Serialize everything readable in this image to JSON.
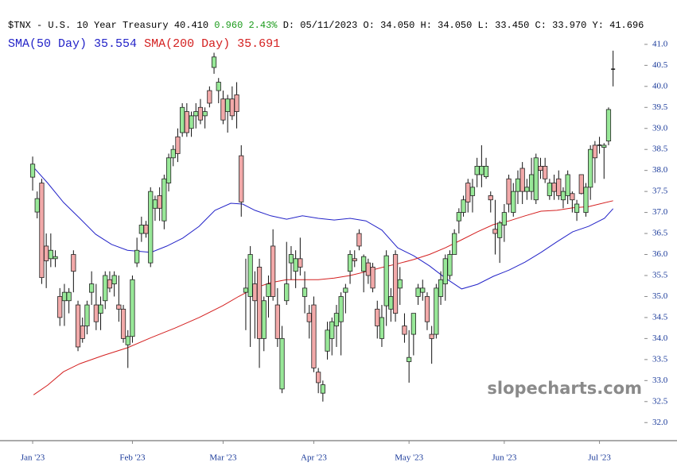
{
  "chart_data": {
    "type": "candlestick",
    "header": {
      "ticker": "$TNX - U.S. 10 Year Treasury",
      "last": "40.410",
      "change": "0.960 2.43%",
      "details": "D: 05/11/2023 O: 34.050 H: 34.050 L: 33.450 C: 33.970 Y: 41.696"
    },
    "watermark": "slopecharts.com",
    "up_color": "#98e898",
    "down_color": "#f2a9a9",
    "open": [
      37.84,
      37.01,
      37.7,
      36.2,
      35.9,
      35.9,
      35.0,
      34.9,
      34.9,
      36.0,
      34.8,
      34.3,
      34.3,
      35.1,
      34.8,
      34.6,
      34.9,
      35.4,
      35.3,
      34.8,
      34.7,
      33.85,
      34.05,
      35.8,
      36.5,
      36.7,
      35.8,
      37.1,
      37.4,
      36.8,
      37.7,
      38.3,
      38.8,
      38.9,
      39.4,
      39.0,
      39.3,
      39.5,
      39.3,
      39.9,
      40.45,
      39.9,
      39.7,
      39.4,
      39.7,
      39.8,
      38.35,
      35.1,
      35.0,
      35.3,
      35.7,
      34.0,
      35.0,
      36.2,
      34.8,
      32.8,
      34.9,
      35.8,
      35.6,
      35.9,
      35.0,
      34.6,
      34.8,
      33.2,
      32.7,
      33.7,
      34.0,
      34.3,
      34.4,
      35.1,
      35.6,
      35.9,
      36.5,
      35.6,
      35.8,
      35.7,
      34.7,
      34.0,
      34.78,
      34.7,
      36.0,
      35.2,
      34.3,
      33.45,
      34.1,
      35.0,
      35.1,
      35.0,
      34.1,
      34.1,
      35.0,
      35.3,
      35.5,
      36.0,
      36.8,
      37.0,
      37.7,
      37.4,
      37.9,
      37.9,
      37.85,
      37.4,
      36.6,
      36.4,
      36.7,
      37.8,
      37.0,
      37.5,
      38.05,
      37.5,
      37.5,
      37.3,
      38.1,
      38.1,
      37.4,
      37.7,
      37.8,
      37.3,
      37.4,
      37.45,
      37.0,
      37.9,
      37.0,
      37.6,
      38.6,
      38.6,
      38.55,
      38.7,
      40.4
    ],
    "high": [
      38.33,
      37.5,
      37.8,
      36.5,
      36.5,
      36.1,
      35.2,
      35.3,
      35.2,
      36.1,
      34.9,
      34.5,
      34.9,
      35.6,
      35.3,
      35.0,
      35.6,
      35.6,
      35.6,
      35.5,
      34.8,
      34.2,
      35.5,
      36.4,
      36.9,
      36.8,
      37.6,
      37.4,
      37.6,
      37.9,
      38.4,
      38.6,
      39.0,
      39.6,
      39.6,
      39.4,
      39.6,
      39.7,
      39.5,
      40.0,
      40.8,
      40.2,
      39.9,
      39.8,
      40.0,
      40.1,
      38.6,
      35.9,
      36.2,
      35.6,
      35.9,
      35.0,
      35.5,
      36.6,
      35.2,
      34.3,
      36.3,
      36.2,
      36.1,
      36.4,
      35.6,
      34.8,
      35.0,
      33.3,
      33.0,
      34.4,
      34.5,
      34.8,
      35.1,
      35.3,
      36.1,
      36.1,
      36.6,
      36.0,
      35.9,
      35.8,
      34.9,
      34.8,
      36.1,
      35.2,
      36.1,
      35.7,
      34.6,
      34.2,
      34.6,
      35.3,
      35.4,
      35.1,
      34.3,
      35.3,
      35.6,
      36.0,
      36.1,
      36.6,
      37.1,
      37.4,
      37.8,
      37.8,
      38.3,
      38.6,
      38.3,
      37.5,
      37.3,
      36.8,
      37.2,
      37.9,
      37.7,
      38.0,
      38.2,
      37.8,
      38.3,
      38.4,
      38.3,
      38.3,
      37.8,
      37.9,
      38.0,
      37.6,
      38.0,
      37.5,
      37.3,
      37.9,
      37.7,
      38.6,
      38.7,
      38.8,
      38.65,
      39.5,
      40.85
    ],
    "low": [
      37.52,
      36.86,
      35.3,
      35.2,
      35.7,
      35.7,
      34.3,
      34.3,
      34.6,
      35.1,
      33.7,
      33.9,
      34.1,
      34.8,
      34.2,
      34.2,
      34.7,
      35.1,
      35.0,
      34.4,
      33.9,
      33.3,
      33.9,
      35.7,
      36.3,
      36.4,
      35.7,
      36.8,
      36.8,
      36.6,
      37.5,
      38.1,
      38.2,
      38.8,
      38.8,
      38.8,
      39.0,
      39.1,
      39.0,
      39.5,
      40.3,
      39.6,
      39.1,
      38.9,
      39.2,
      39.0,
      36.9,
      34.2,
      33.8,
      34.0,
      33.3,
      33.7,
      34.5,
      34.9,
      33.8,
      32.7,
      34.8,
      35.4,
      35.2,
      35.5,
      34.6,
      34.0,
      33.2,
      32.7,
      32.5,
      33.5,
      33.6,
      33.8,
      33.6,
      34.6,
      35.3,
      35.7,
      36.1,
      35.1,
      35.3,
      35.1,
      34.0,
      33.8,
      34.3,
      34.4,
      34.4,
      34.8,
      33.9,
      32.95,
      33.6,
      34.8,
      34.9,
      34.2,
      33.4,
      34.0,
      34.8,
      34.9,
      35.4,
      36.0,
      36.5,
      36.9,
      37.0,
      37.0,
      37.6,
      37.6,
      37.8,
      37.0,
      36.0,
      35.8,
      36.3,
      37.0,
      36.9,
      37.2,
      37.2,
      37.3,
      37.3,
      37.2,
      37.8,
      37.7,
      37.3,
      37.3,
      37.3,
      37.1,
      37.2,
      37.0,
      36.8,
      37.43,
      36.9,
      37.3,
      37.7,
      38.4,
      37.8,
      38.6,
      40.0
    ],
    "close": [
      38.15,
      37.33,
      35.45,
      35.85,
      36.1,
      35.95,
      34.5,
      35.1,
      35.1,
      35.6,
      33.8,
      34.0,
      34.8,
      35.3,
      34.4,
      34.8,
      35.5,
      35.2,
      35.5,
      34.7,
      34.0,
      34.05,
      35.4,
      36.1,
      36.7,
      36.5,
      37.5,
      37.3,
      37.1,
      37.8,
      38.3,
      38.5,
      38.4,
      39.5,
      38.9,
      39.3,
      39.4,
      39.2,
      39.4,
      39.6,
      40.7,
      40.1,
      39.2,
      39.7,
      39.3,
      39.4,
      37.25,
      35.2,
      36.0,
      34.9,
      34.0,
      34.9,
      35.3,
      35.0,
      34.0,
      34.0,
      35.3,
      36.0,
      35.9,
      35.7,
      35.2,
      34.4,
      33.3,
      32.95,
      32.9,
      34.2,
      34.4,
      34.6,
      35.0,
      35.2,
      36.0,
      35.85,
      36.2,
      35.95,
      35.5,
      35.2,
      34.3,
      34.5,
      35.97,
      35.0,
      34.6,
      35.4,
      34.1,
      33.55,
      34.6,
      35.2,
      35.2,
      34.4,
      34.0,
      35.2,
      35.4,
      35.9,
      36.0,
      36.5,
      37.0,
      37.3,
      37.25,
      37.6,
      38.1,
      38.1,
      38.1,
      37.3,
      36.5,
      36.75,
      37.0,
      37.2,
      37.5,
      37.8,
      37.5,
      37.6,
      37.9,
      38.3,
      38.0,
      37.8,
      37.7,
      37.5,
      37.4,
      37.5,
      37.9,
      37.3,
      37.2,
      37.45,
      37.6,
      38.5,
      38.3,
      38.6,
      38.6,
      39.45,
      40.41
    ],
    "sma": [
      {
        "name": "SMA(50 Day)",
        "label_value": "35.554",
        "color": "#2323c8",
        "x": [
          0,
          3.3,
          6.8,
          10.4,
          13.9,
          17.4,
          20.9,
          26.1,
          29.6,
          33.1,
          36.7,
          40.2,
          43.7,
          46.3,
          49,
          52.5,
          56,
          59.5,
          63,
          66.5,
          70,
          73.5,
          77,
          80.5,
          84,
          87.5,
          91,
          94.6,
          98.1,
          101.6,
          105.1,
          108.6,
          112.1,
          115.6,
          119.1,
          122.6,
          126.1,
          128
        ],
        "values": [
          38.1,
          37.7,
          37.24,
          36.86,
          36.48,
          36.24,
          36.1,
          36.05,
          36.2,
          36.39,
          36.67,
          37.05,
          37.22,
          37.2,
          37.05,
          36.92,
          36.84,
          36.92,
          36.86,
          36.82,
          36.86,
          36.8,
          36.58,
          36.16,
          35.97,
          35.73,
          35.44,
          35.18,
          35.29,
          35.48,
          35.63,
          35.82,
          36.05,
          36.3,
          36.54,
          36.67,
          36.86,
          37.09
        ]
      },
      {
        "name": "SMA(200 Day)",
        "label_value": "35.691",
        "color": "#d42020",
        "x": [
          0.2,
          3.3,
          6.8,
          10.4,
          15.6,
          20.9,
          26.1,
          31.4,
          36.7,
          41.9,
          45.4,
          48.9,
          52.5,
          56,
          59.5,
          63,
          66.5,
          70,
          73.5,
          77,
          80.5,
          84,
          87.5,
          91,
          94.6,
          98.1,
          101.6,
          105.1,
          108.6,
          112.1,
          115.6,
          119.1,
          122.6,
          128
        ],
        "values": [
          32.66,
          32.89,
          33.21,
          33.4,
          33.6,
          33.78,
          34.02,
          34.25,
          34.5,
          34.78,
          35.0,
          35.2,
          35.33,
          35.4,
          35.4,
          35.4,
          35.44,
          35.5,
          35.59,
          35.69,
          35.78,
          35.88,
          36.0,
          36.16,
          36.35,
          36.54,
          36.71,
          36.8,
          36.92,
          37.03,
          37.05,
          37.11,
          37.14,
          37.28
        ]
      }
    ],
    "xlim": [
      -7.2,
      134.9
    ],
    "xticks": [
      {
        "value": 0,
        "label": "Jan '23"
      },
      {
        "value": 22,
        "label": "Feb '23"
      },
      {
        "value": 42,
        "label": "Mar '23"
      },
      {
        "value": 62,
        "label": "Apr '23"
      },
      {
        "value": 83,
        "label": "May '23"
      },
      {
        "value": 104,
        "label": "Jun '23"
      },
      {
        "value": 125,
        "label": "Jul '23"
      }
    ],
    "ylim": [
      31.57,
      41.3
    ],
    "yticks": [
      {
        "value": 32,
        "label": "32.0"
      },
      32.5,
      {
        "value": 33,
        "label": "33.0"
      },
      33.5,
      {
        "value": 34,
        "label": "34.0"
      },
      34.5,
      {
        "value": 35,
        "label": "35.0"
      },
      35.5,
      {
        "value": 36,
        "label": "36.0"
      },
      36.5,
      {
        "value": 37,
        "label": "37.0"
      },
      37.5,
      {
        "value": 38,
        "label": "38.0"
      },
      38.5,
      {
        "value": 39,
        "label": "39.0"
      },
      39.5,
      {
        "value": 40,
        "label": "40.0"
      },
      40.5,
      {
        "value": 41,
        "label": "41.0"
      }
    ]
  }
}
